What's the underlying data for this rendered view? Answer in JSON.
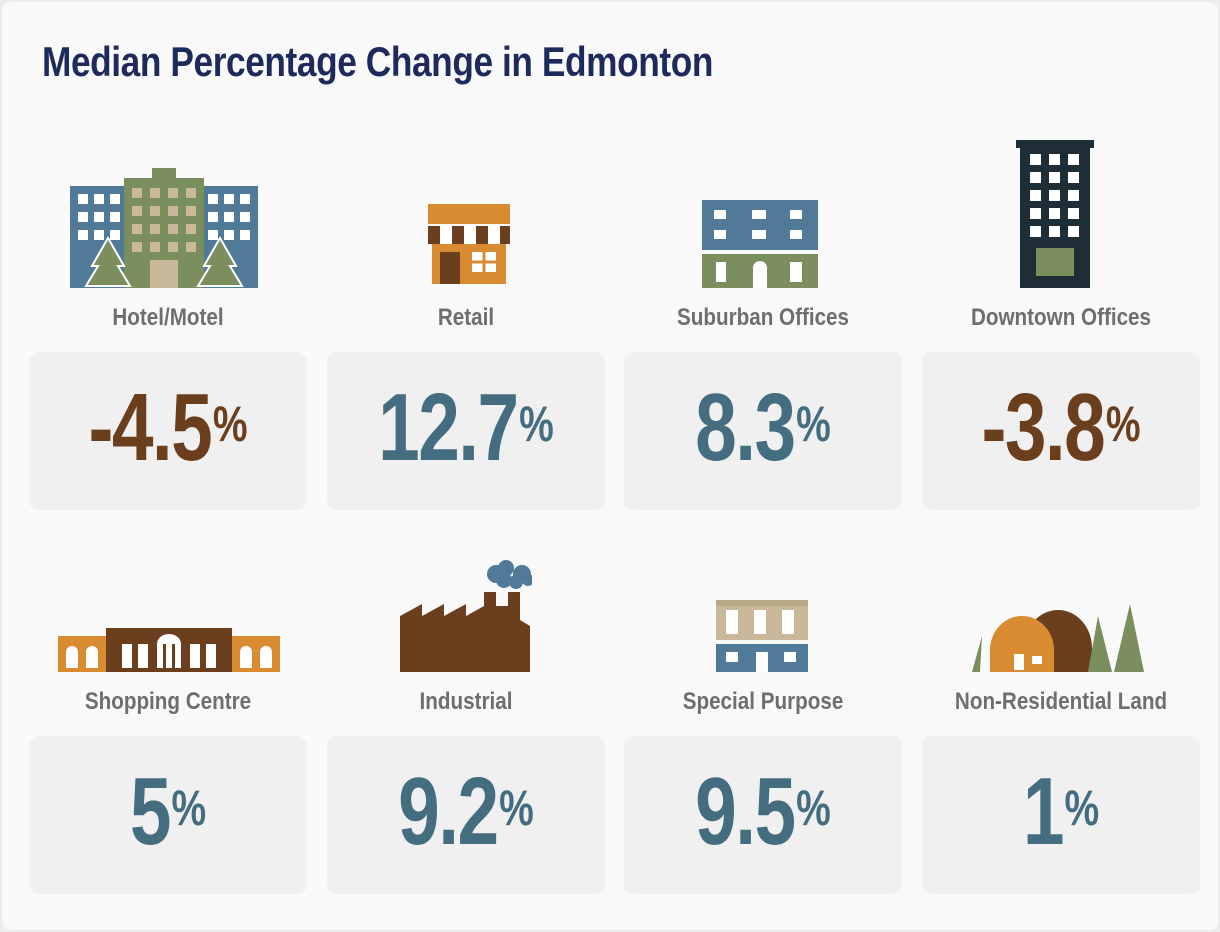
{
  "title": "Median Percentage Change in Edmonton",
  "colors": {
    "title": "#1f2a5c",
    "negative": "#6b3e1e",
    "positive": "#456d80",
    "label": "#6e6e6e",
    "box": "#f0f0f0"
  },
  "chart_data": {
    "type": "table",
    "title": "Median Percentage Change in Edmonton",
    "unit": "%",
    "categories": [
      "Hotel/Motel",
      "Retail",
      "Suburban Offices",
      "Downtown Offices",
      "Shopping Centre",
      "Industrial",
      "Special Purpose",
      "Non-Residential Land"
    ],
    "values": [
      -4.5,
      12.7,
      8.3,
      -3.8,
      5,
      9.2,
      9.5,
      1
    ]
  },
  "tiles": [
    {
      "label": "Hotel/Motel",
      "value_text": "-4.5",
      "pct": "%",
      "icon": "hotel-building-icon"
    },
    {
      "label": "Retail",
      "value_text": "12.7",
      "pct": "%",
      "icon": "storefront-icon"
    },
    {
      "label": "Suburban Offices",
      "value_text": "8.3",
      "pct": "%",
      "icon": "low-rise-office-icon"
    },
    {
      "label": "Downtown Offices",
      "value_text": "-3.8",
      "pct": "%",
      "icon": "office-tower-icon"
    },
    {
      "label": "Shopping Centre",
      "value_text": "5",
      "pct": "%",
      "icon": "shopping-mall-icon"
    },
    {
      "label": "Industrial",
      "value_text": "9.2",
      "pct": "%",
      "icon": "factory-icon"
    },
    {
      "label": "Special Purpose",
      "value_text": "9.5",
      "pct": "%",
      "icon": "special-purpose-building-icon"
    },
    {
      "label": "Non-Residential Land",
      "value_text": "1",
      "pct": "%",
      "icon": "land-with-trees-icon"
    }
  ]
}
